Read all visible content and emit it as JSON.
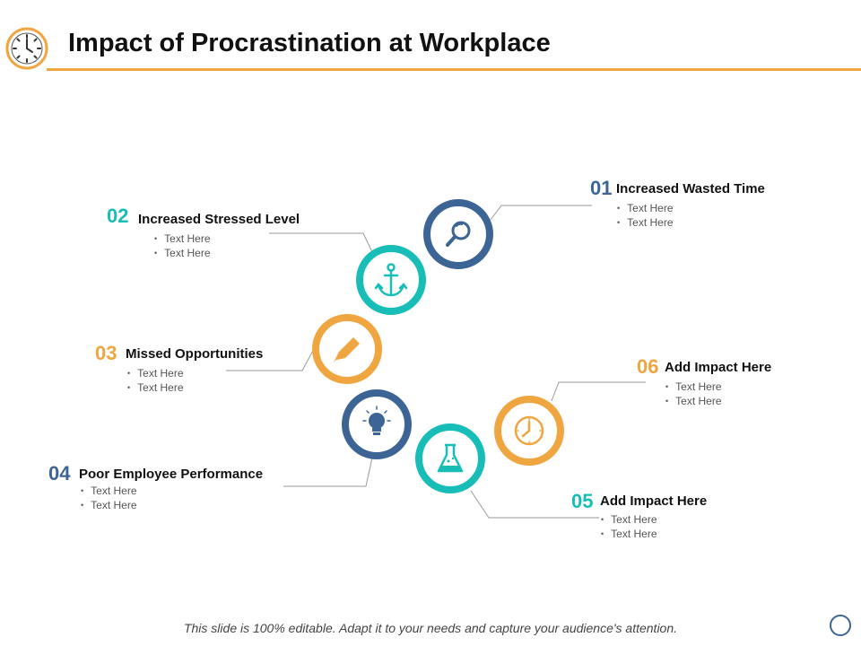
{
  "slide": {
    "title": "Impact of Procrastination at Workplace",
    "footer": "This slide is 100% editable.  Adapt it to your needs and capture your audience's attention."
  },
  "colors": {
    "orange": "#f0a640",
    "teal": "#19bdb7",
    "blue": "#3c6596",
    "connector": "#9a9a9a"
  },
  "items": [
    {
      "num": "01",
      "heading": "Increased Wasted Time",
      "bullets": [
        "Text Here",
        "Text Here"
      ],
      "icon": "magnifier-icon",
      "color": "#3c6596"
    },
    {
      "num": "02",
      "heading": "Increased Stressed Level",
      "bullets": [
        "Text Here",
        "Text Here"
      ],
      "icon": "anchor-icon",
      "color": "#19bdb7"
    },
    {
      "num": "03",
      "heading": "Missed Opportunities",
      "bullets": [
        "Text Here",
        "Text Here"
      ],
      "icon": "pencil-icon",
      "color": "#f0a640"
    },
    {
      "num": "04",
      "heading": "Poor Employee Performance",
      "bullets": [
        "Text Here",
        "Text Here"
      ],
      "icon": "lightbulb-icon",
      "color": "#3c6596"
    },
    {
      "num": "05",
      "heading": "Add Impact Here",
      "bullets": [
        "Text Here",
        "Text Here"
      ],
      "icon": "flask-icon",
      "color": "#19bdb7"
    },
    {
      "num": "06",
      "heading": "Add Impact Here",
      "bullets": [
        "Text Here",
        "Text Here"
      ],
      "icon": "clock-icon",
      "color": "#f0a640"
    }
  ]
}
